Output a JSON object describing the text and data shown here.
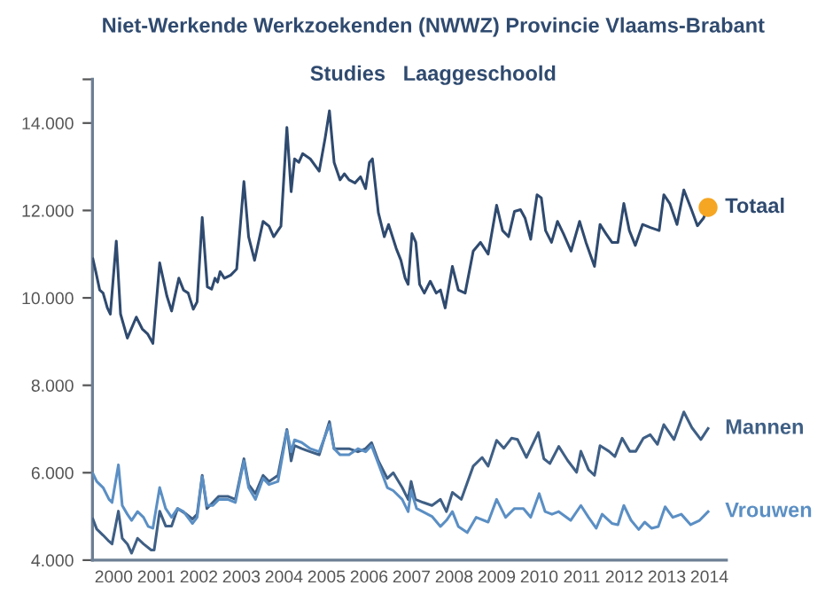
{
  "chart_data": {
    "type": "line",
    "title": "Niet-Werkende Werkzoekenden (NWWZ) Provincie Vlaams-Brabant",
    "subtitle": "Studies   Laaggeschoold",
    "xlim": [
      2000,
      2014.9
    ],
    "xticks": [
      {
        "value": 2000.5,
        "label": "2000"
      },
      {
        "value": 2001.5,
        "label": "2001"
      },
      {
        "value": 2002.5,
        "label": "2002"
      },
      {
        "value": 2003.5,
        "label": "2003"
      },
      {
        "value": 2004.5,
        "label": "2004"
      },
      {
        "value": 2005.5,
        "label": "2005"
      },
      {
        "value": 2006.5,
        "label": "2006"
      },
      {
        "value": 2007.5,
        "label": "2007"
      },
      {
        "value": 2008.5,
        "label": "2008"
      },
      {
        "value": 2009.5,
        "label": "2009"
      },
      {
        "value": 2010.5,
        "label": "2010"
      },
      {
        "value": 2011.5,
        "label": "2011"
      },
      {
        "value": 2012.5,
        "label": "2012"
      },
      {
        "value": 2013.5,
        "label": "2013"
      },
      {
        "value": 2014.5,
        "label": "2014"
      }
    ],
    "ylim": [
      4000,
      15000
    ],
    "yticks": [
      {
        "value": 4000,
        "label": "4.000"
      },
      {
        "value": 6000,
        "label": "6.000"
      },
      {
        "value": 8000,
        "label": "8.000"
      },
      {
        "value": 10000,
        "label": "10.000"
      },
      {
        "value": 12000,
        "label": "12.000"
      },
      {
        "value": 14000,
        "label": "14.000"
      },
      {
        "value": 15000,
        "label": null
      }
    ],
    "grid": false,
    "legend": false,
    "marker": "none",
    "line_style": "solid",
    "series": [
      {
        "name": "Totaal",
        "color": "#2f4a6f",
        "x": [
          2000.01,
          2000.08,
          2000.17,
          2000.25,
          2000.35,
          2000.42,
          2000.56,
          2000.66,
          2000.82,
          2001.03,
          2001.17,
          2001.3,
          2001.42,
          2001.58,
          2001.75,
          2001.86,
          2002.03,
          2002.14,
          2002.25,
          2002.37,
          2002.46,
          2002.58,
          2002.7,
          2002.8,
          2002.88,
          2002.94,
          2003.0,
          2003.1,
          2003.25,
          2003.39,
          2003.56,
          2003.67,
          2003.81,
          2004.01,
          2004.15,
          2004.26,
          2004.43,
          2004.57,
          2004.67,
          2004.75,
          2004.85,
          2004.94,
          2005.12,
          2005.33,
          2005.47,
          2005.57,
          2005.68,
          2005.82,
          2005.92,
          2006.03,
          2006.17,
          2006.3,
          2006.42,
          2006.51,
          2006.58,
          2006.72,
          2006.86,
          2006.96,
          2007.14,
          2007.25,
          2007.35,
          2007.42,
          2007.51,
          2007.6,
          2007.69,
          2007.8,
          2007.94,
          2008.08,
          2008.18,
          2008.29,
          2008.46,
          2008.6,
          2008.76,
          2008.95,
          2009.12,
          2009.3,
          2009.5,
          2009.64,
          2009.78,
          2009.92,
          2010.06,
          2010.17,
          2010.3,
          2010.45,
          2010.55,
          2010.65,
          2010.79,
          2010.93,
          2011.07,
          2011.25,
          2011.45,
          2011.6,
          2011.8,
          2011.93,
          2012.07,
          2012.21,
          2012.35,
          2012.49,
          2012.62,
          2012.76,
          2012.93,
          2013.11,
          2013.32,
          2013.43,
          2013.57,
          2013.74,
          2013.9,
          2014.08,
          2014.22,
          2014.36,
          2014.47
        ],
        "values": [
          10890,
          10590,
          10180,
          10110,
          9770,
          9630,
          11300,
          9630,
          9080,
          9560,
          9290,
          9170,
          8960,
          10800,
          10040,
          9700,
          10450,
          10180,
          10110,
          9740,
          9910,
          11840,
          10250,
          10200,
          10450,
          10360,
          10600,
          10450,
          10520,
          10660,
          12660,
          11400,
          10860,
          11750,
          11640,
          11400,
          11640,
          13900,
          12430,
          13180,
          13100,
          13300,
          13180,
          12900,
          13660,
          14280,
          13100,
          12700,
          12840,
          12700,
          12630,
          12770,
          12500,
          13100,
          13180,
          11950,
          11400,
          11680,
          11130,
          10860,
          10450,
          10310,
          11470,
          11270,
          10310,
          10110,
          10380,
          10110,
          10180,
          9770,
          10720,
          10180,
          10110,
          11070,
          11270,
          11000,
          12120,
          11540,
          11400,
          11980,
          12020,
          11820,
          11340,
          12360,
          12290,
          11540,
          11270,
          11750,
          11470,
          11070,
          11750,
          11270,
          10720,
          11680,
          11470,
          11270,
          11270,
          12160,
          11540,
          11200,
          11680,
          11610,
          11540,
          12360,
          12160,
          11680,
          12470,
          12020,
          11650,
          11820,
          12070
        ]
      },
      {
        "name": "Mannen",
        "color": "#3f5f85",
        "x": [
          2000.01,
          2000.1,
          2000.25,
          2000.39,
          2000.46,
          2000.61,
          2000.7,
          2000.82,
          2000.92,
          2001.06,
          2001.2,
          2001.38,
          2001.45,
          2001.58,
          2001.72,
          2001.86,
          2002.0,
          2002.21,
          2002.35,
          2002.46,
          2002.58,
          2002.69,
          2002.83,
          2002.97,
          2003.18,
          2003.36,
          2003.56,
          2003.67,
          2003.83,
          2004.01,
          2004.15,
          2004.36,
          2004.57,
          2004.67,
          2004.75,
          2004.92,
          2005.12,
          2005.33,
          2005.57,
          2005.68,
          2005.82,
          2006.03,
          2006.24,
          2006.42,
          2006.56,
          2006.72,
          2006.93,
          2007.07,
          2007.28,
          2007.42,
          2007.49,
          2007.59,
          2007.77,
          2007.98,
          2008.18,
          2008.32,
          2008.46,
          2008.67,
          2008.95,
          2009.16,
          2009.3,
          2009.5,
          2009.67,
          2009.85,
          2009.99,
          2010.2,
          2010.48,
          2010.61,
          2010.75,
          2010.96,
          2011.17,
          2011.38,
          2011.48,
          2011.66,
          2011.8,
          2011.93,
          2012.14,
          2012.28,
          2012.45,
          2012.63,
          2012.77,
          2012.95,
          2013.11,
          2013.28,
          2013.43,
          2013.67,
          2013.9,
          2014.09,
          2014.3,
          2014.47
        ],
        "values": [
          4940,
          4710,
          4570,
          4430,
          4370,
          5120,
          4500,
          4370,
          4160,
          4500,
          4370,
          4230,
          4230,
          5120,
          4780,
          4780,
          5180,
          5050,
          4940,
          5050,
          5940,
          5180,
          5320,
          5460,
          5460,
          5390,
          6320,
          5730,
          5520,
          5940,
          5800,
          5940,
          6990,
          6270,
          6620,
          6550,
          6480,
          6410,
          7170,
          6550,
          6550,
          6550,
          6480,
          6550,
          6690,
          6270,
          5870,
          6000,
          5660,
          5390,
          5800,
          5390,
          5320,
          5250,
          5390,
          5110,
          5550,
          5390,
          6150,
          6350,
          6150,
          6740,
          6560,
          6790,
          6760,
          6350,
          6920,
          6320,
          6210,
          6600,
          6280,
          6010,
          6490,
          6070,
          5940,
          6620,
          6490,
          6370,
          6790,
          6490,
          6490,
          6790,
          6870,
          6650,
          7100,
          6760,
          7390,
          7030,
          6760,
          7010
        ]
      },
      {
        "name": "Vrouwen",
        "color": "#5b8fc4",
        "x": [
          2000.01,
          2000.1,
          2000.25,
          2000.39,
          2000.46,
          2000.61,
          2000.7,
          2000.82,
          2000.92,
          2001.06,
          2001.2,
          2001.31,
          2001.42,
          2001.58,
          2001.72,
          2001.86,
          2002.0,
          2002.14,
          2002.35,
          2002.46,
          2002.58,
          2002.69,
          2002.83,
          2002.97,
          2003.18,
          2003.36,
          2003.56,
          2003.67,
          2003.83,
          2004.01,
          2004.15,
          2004.36,
          2004.57,
          2004.67,
          2004.75,
          2004.92,
          2005.12,
          2005.33,
          2005.57,
          2005.68,
          2005.82,
          2006.03,
          2006.24,
          2006.42,
          2006.56,
          2006.72,
          2006.93,
          2007.07,
          2007.28,
          2007.42,
          2007.49,
          2007.62,
          2007.76,
          2007.98,
          2008.18,
          2008.32,
          2008.46,
          2008.6,
          2008.81,
          2009.02,
          2009.3,
          2009.5,
          2009.71,
          2009.92,
          2010.13,
          2010.3,
          2010.5,
          2010.64,
          2010.8,
          2010.96,
          2011.24,
          2011.48,
          2011.66,
          2011.84,
          2011.98,
          2012.21,
          2012.35,
          2012.49,
          2012.66,
          2012.84,
          2012.98,
          2013.14,
          2013.3,
          2013.46,
          2013.64,
          2013.84,
          2014.06,
          2014.27,
          2014.47
        ],
        "values": [
          5980,
          5800,
          5660,
          5390,
          5320,
          6180,
          5250,
          5050,
          4910,
          5110,
          4980,
          4770,
          4730,
          5660,
          5180,
          4980,
          5180,
          5110,
          4840,
          4980,
          5910,
          5250,
          5250,
          5390,
          5390,
          5320,
          6270,
          5660,
          5390,
          5870,
          5730,
          5800,
          6960,
          6480,
          6750,
          6690,
          6550,
          6480,
          7100,
          6550,
          6410,
          6410,
          6550,
          6480,
          6620,
          6210,
          5660,
          5590,
          5390,
          5110,
          5590,
          5180,
          5110,
          5000,
          4770,
          4910,
          5110,
          4770,
          4630,
          4980,
          4870,
          5390,
          4980,
          5180,
          5180,
          4980,
          5520,
          5110,
          5050,
          5110,
          4910,
          5250,
          4980,
          4730,
          5050,
          4840,
          4810,
          5250,
          4910,
          4700,
          4870,
          4730,
          4770,
          5220,
          4980,
          5050,
          4810,
          4910,
          5110
        ]
      },
      {
        "type": "scatter",
        "marker": "circle",
        "color": "#f5a623",
        "x": [
          2014.47
        ],
        "values": [
          12070
        ]
      }
    ]
  }
}
